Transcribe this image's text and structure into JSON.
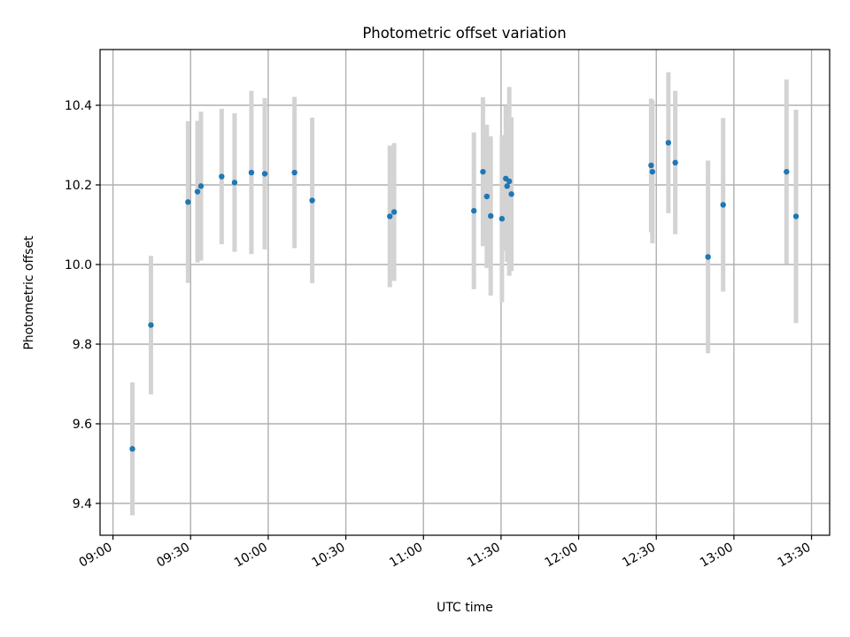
{
  "chart_data": {
    "type": "scatter",
    "title": "Photometric offset variation",
    "xlabel": "UTC time",
    "ylabel": "Photometric offset",
    "xlim": [
      "08:55",
      "13:37"
    ],
    "ylim": [
      9.32,
      10.54
    ],
    "grid": true,
    "x_ticks": [
      "09:00",
      "09:30",
      "10:00",
      "10:30",
      "11:00",
      "11:30",
      "12:00",
      "12:30",
      "13:00",
      "13:30"
    ],
    "y_ticks": [
      9.4,
      9.6,
      9.8,
      10.0,
      10.2,
      10.4
    ],
    "point_color": "#1f77b4",
    "errorbar_color": "#d3d3d3",
    "points": [
      {
        "x": "09:07:30",
        "y": 9.537,
        "err": 0.167
      },
      {
        "x": "09:14:40",
        "y": 9.848,
        "err": 0.174
      },
      {
        "x": "09:29:00",
        "y": 10.157,
        "err": 0.203
      },
      {
        "x": "09:32:40",
        "y": 10.183,
        "err": 0.178
      },
      {
        "x": "09:34:00",
        "y": 10.197,
        "err": 0.187
      },
      {
        "x": "09:42:00",
        "y": 10.221,
        "err": 0.17
      },
      {
        "x": "09:47:00",
        "y": 10.206,
        "err": 0.174
      },
      {
        "x": "09:53:30",
        "y": 10.231,
        "err": 0.205
      },
      {
        "x": "09:58:40",
        "y": 10.228,
        "err": 0.19
      },
      {
        "x": "10:10:10",
        "y": 10.231,
        "err": 0.19
      },
      {
        "x": "10:17:00",
        "y": 10.161,
        "err": 0.208
      },
      {
        "x": "10:47:00",
        "y": 10.121,
        "err": 0.178
      },
      {
        "x": "10:48:40",
        "y": 10.132,
        "err": 0.173
      },
      {
        "x": "11:19:30",
        "y": 10.135,
        "err": 0.197
      },
      {
        "x": "11:23:00",
        "y": 10.233,
        "err": 0.187
      },
      {
        "x": "11:24:30",
        "y": 10.171,
        "err": 0.18
      },
      {
        "x": "11:26:00",
        "y": 10.122,
        "err": 0.2
      },
      {
        "x": "11:30:20",
        "y": 10.115,
        "err": 0.21
      },
      {
        "x": "11:31:50",
        "y": 10.216,
        "err": 0.182
      },
      {
        "x": "11:32:20",
        "y": 10.197,
        "err": 0.19
      },
      {
        "x": "11:33:10",
        "y": 10.209,
        "err": 0.237
      },
      {
        "x": "11:34:00",
        "y": 10.177,
        "err": 0.193
      },
      {
        "x": "12:28:00",
        "y": 10.249,
        "err": 0.168
      },
      {
        "x": "12:28:30",
        "y": 10.233,
        "err": 0.18
      },
      {
        "x": "12:34:40",
        "y": 10.306,
        "err": 0.177
      },
      {
        "x": "12:37:20",
        "y": 10.256,
        "err": 0.18
      },
      {
        "x": "12:50:00",
        "y": 10.019,
        "err": 0.242
      },
      {
        "x": "12:55:50",
        "y": 10.15,
        "err": 0.218
      },
      {
        "x": "13:20:20",
        "y": 10.233,
        "err": 0.232
      },
      {
        "x": "13:24:00",
        "y": 10.121,
        "err": 0.268
      }
    ]
  }
}
